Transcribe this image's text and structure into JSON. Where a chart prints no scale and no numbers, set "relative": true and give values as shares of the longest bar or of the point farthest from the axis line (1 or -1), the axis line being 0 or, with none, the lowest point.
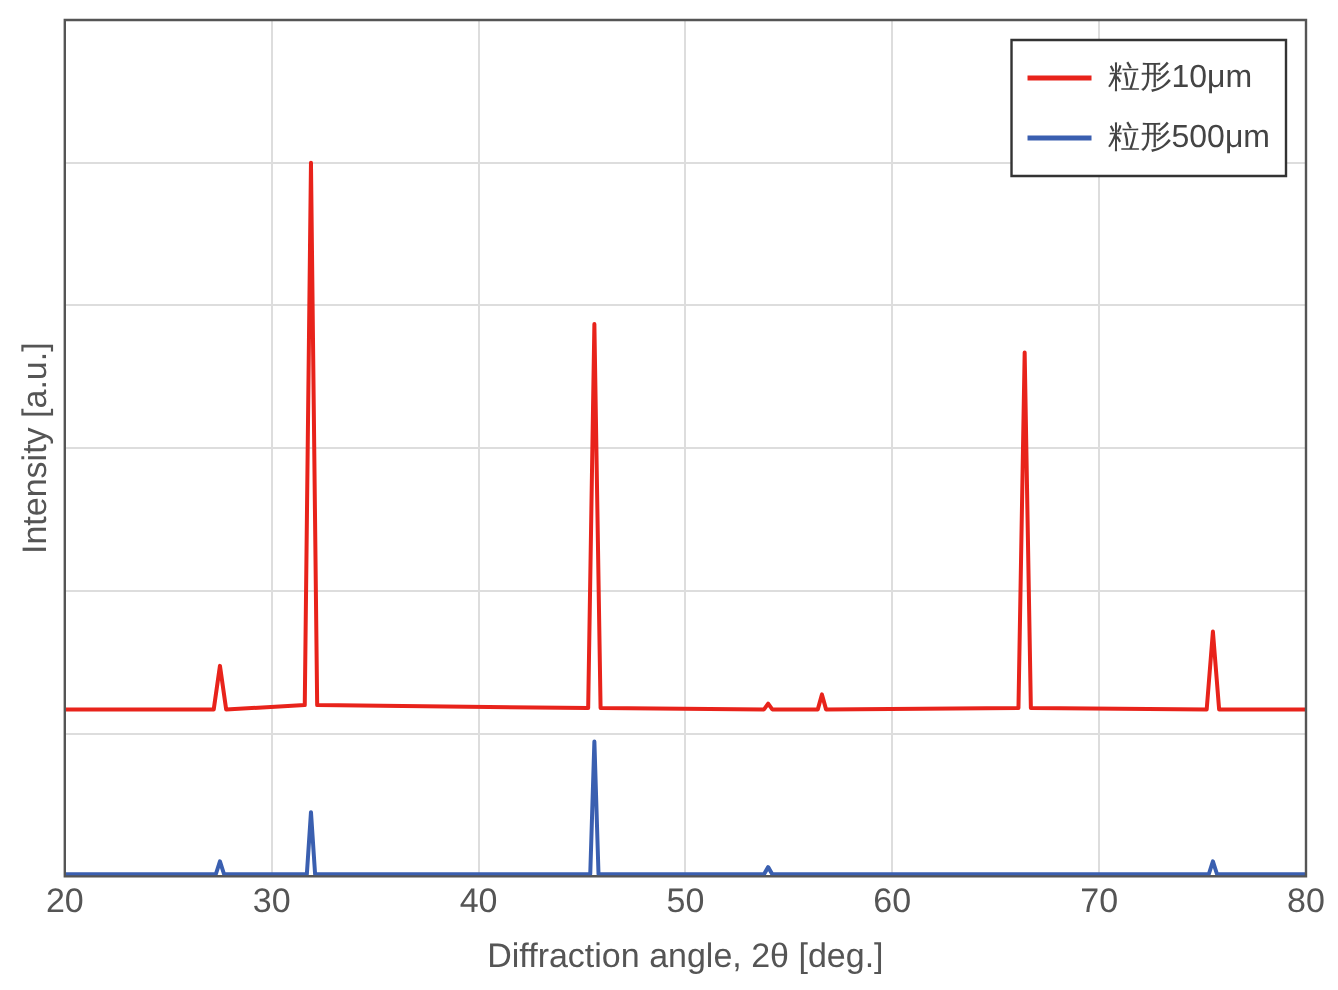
{
  "chart_data": {
    "type": "line",
    "xlabel": "Diffraction angle, 2θ [deg.]",
    "ylabel": "Intensity [a.u.]",
    "relative": true,
    "xlim": [
      20,
      80
    ],
    "xticks": [
      20,
      30,
      40,
      50,
      60,
      70,
      80
    ],
    "grid": true,
    "legend": "top right",
    "marker": "none",
    "line_style": "solid",
    "series": [
      {
        "name": "粒形10μm",
        "color": "#e8231b",
        "x": [
          20,
          27.2,
          27.5,
          27.8,
          31.6,
          31.9,
          32.2,
          45.3,
          45.6,
          45.9,
          53.8,
          54.0,
          54.2,
          56.4,
          56.6,
          56.8,
          66.1,
          66.4,
          66.7,
          75.2,
          75.5,
          75.8,
          80
        ],
        "values": [
          0.234,
          0.234,
          0.295,
          0.234,
          0.24,
          1,
          0.24,
          0.236,
          0.774,
          0.236,
          0.234,
          0.242,
          0.234,
          0.234,
          0.255,
          0.234,
          0.236,
          0.734,
          0.236,
          0.234,
          0.343,
          0.234,
          0.234
        ]
      },
      {
        "name": "粒形500μm",
        "color": "#3a5fb0",
        "x": [
          20,
          27.3,
          27.5,
          27.7,
          31.7,
          31.9,
          32.1,
          45.4,
          45.6,
          45.8,
          53.8,
          54.0,
          54.2,
          75.3,
          75.5,
          75.7,
          80
        ],
        "values": [
          0.003,
          0.003,
          0.021,
          0.003,
          0.003,
          0.09,
          0.003,
          0.003,
          0.189,
          0.003,
          0.003,
          0.013,
          0.003,
          0.003,
          0.021,
          0.003,
          0.003
        ]
      }
    ]
  }
}
